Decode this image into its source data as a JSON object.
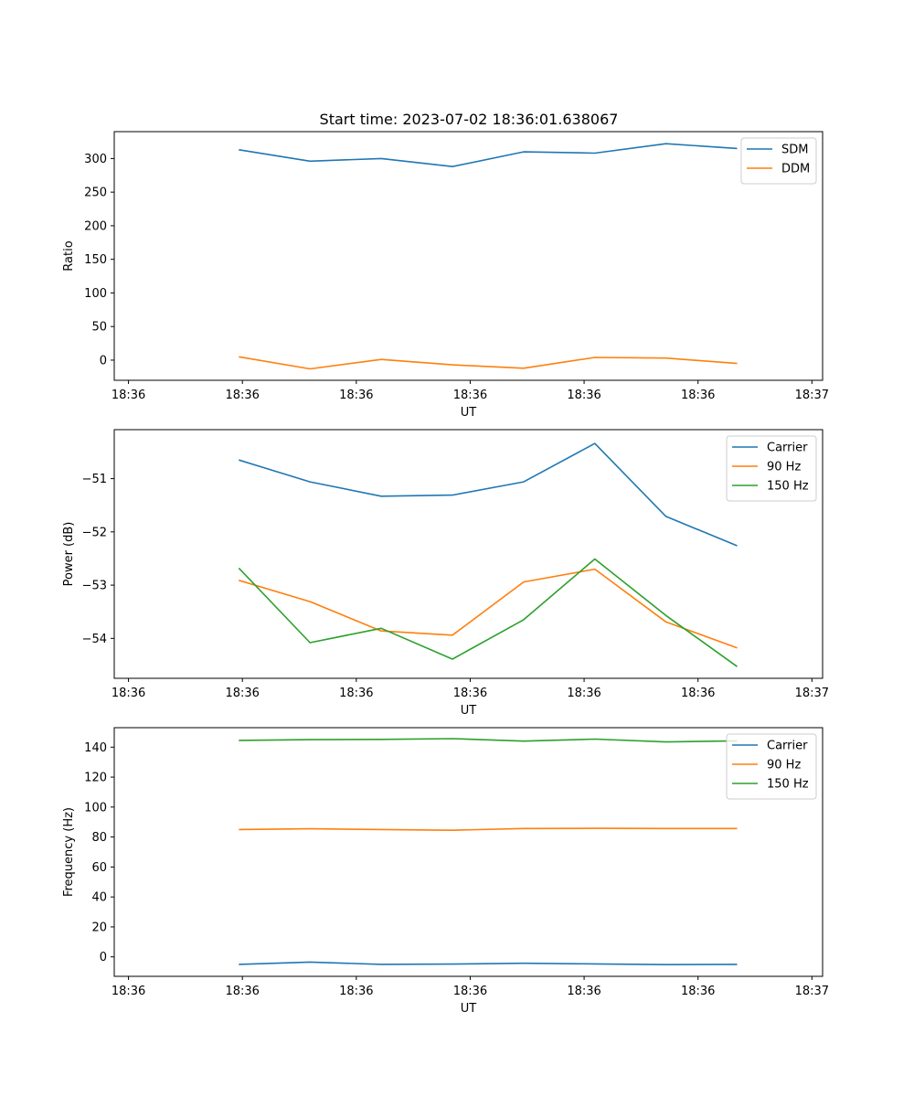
{
  "figure": {
    "title": "Start time: 2023-07-02 18:36:01.638067"
  },
  "colors": {
    "blue": "#1f77b4",
    "orange": "#ff7f0e",
    "green": "#2ca02c"
  },
  "chart_data": [
    {
      "type": "line",
      "title": "Start time: 2023-07-02 18:36:01.638067",
      "xlabel": "UT",
      "ylabel": "Ratio",
      "legend_position": "top-right",
      "grid": false,
      "x": [
        1,
        2,
        3,
        4,
        5,
        6,
        7,
        8
      ],
      "xlim": [
        -0.75,
        9.2
      ],
      "x_ticks": [
        -0.55,
        1.05,
        2.65,
        4.25,
        5.85,
        7.45,
        9.05
      ],
      "x_tick_labels": [
        "18:36",
        "18:36",
        "18:36",
        "18:36",
        "18:36",
        "18:36",
        "18:37"
      ],
      "ylim": [
        -30,
        340
      ],
      "y_ticks": [
        0,
        50,
        100,
        150,
        200,
        250,
        300
      ],
      "y_tick_labels": [
        "0",
        "50",
        "100",
        "150",
        "200",
        "250",
        "300"
      ],
      "series": [
        {
          "name": "SDM",
          "color": "#1f77b4",
          "values": [
            313,
            296,
            300,
            288,
            310,
            308,
            322,
            315
          ]
        },
        {
          "name": "DDM",
          "color": "#ff7f0e",
          "values": [
            5,
            -13,
            1,
            -7,
            -12,
            4,
            3,
            -5
          ]
        }
      ]
    },
    {
      "type": "line",
      "title": "",
      "xlabel": "UT",
      "ylabel": "Power (dB)",
      "legend_position": "top-right",
      "grid": false,
      "x": [
        1,
        2,
        3,
        4,
        5,
        6,
        7,
        8
      ],
      "xlim": [
        -0.75,
        9.2
      ],
      "x_ticks": [
        -0.55,
        1.05,
        2.65,
        4.25,
        5.85,
        7.45,
        9.05
      ],
      "x_tick_labels": [
        "18:36",
        "18:36",
        "18:36",
        "18:36",
        "18:36",
        "18:36",
        "18:37"
      ],
      "ylim": [
        -54.75,
        -50.08
      ],
      "y_ticks": [
        -54,
        -53,
        -52,
        -51
      ],
      "y_tick_labels": [
        "−54",
        "−53",
        "−52",
        "−51"
      ],
      "series": [
        {
          "name": "Carrier",
          "color": "#1f77b4",
          "values": [
            -50.65,
            -51.06,
            -51.33,
            -51.31,
            -51.06,
            -50.34,
            -51.71,
            -52.26
          ]
        },
        {
          "name": "90 Hz",
          "color": "#ff7f0e",
          "values": [
            -52.91,
            -53.31,
            -53.86,
            -53.94,
            -52.94,
            -52.7,
            -53.69,
            -54.18
          ]
        },
        {
          "name": "150 Hz",
          "color": "#2ca02c",
          "values": [
            -52.68,
            -54.08,
            -53.81,
            -54.39,
            -53.65,
            -52.51,
            -53.57,
            -54.53
          ]
        }
      ]
    },
    {
      "type": "line",
      "title": "",
      "xlabel": "UT",
      "ylabel": "Frequency (Hz)",
      "legend_position": "top-right",
      "grid": false,
      "x": [
        1,
        2,
        3,
        4,
        5,
        6,
        7,
        8
      ],
      "xlim": [
        -0.75,
        9.2
      ],
      "x_ticks": [
        -0.55,
        1.05,
        2.65,
        4.25,
        5.85,
        7.45,
        9.05
      ],
      "x_tick_labels": [
        "18:36",
        "18:36",
        "18:36",
        "18:36",
        "18:36",
        "18:36",
        "18:37"
      ],
      "ylim": [
        -13,
        153
      ],
      "y_ticks": [
        0,
        20,
        40,
        60,
        80,
        100,
        120,
        140
      ],
      "y_tick_labels": [
        "0",
        "20",
        "40",
        "60",
        "80",
        "100",
        "120",
        "140"
      ],
      "series": [
        {
          "name": "Carrier",
          "color": "#1f77b4",
          "values": [
            -5.0,
            -3.5,
            -5.0,
            -4.8,
            -4.3,
            -4.7,
            -5.2,
            -5.0
          ]
        },
        {
          "name": "90 Hz",
          "color": "#ff7f0e",
          "values": [
            85.0,
            85.5,
            85.0,
            84.5,
            85.7,
            85.8,
            85.7,
            85.7
          ]
        },
        {
          "name": "150 Hz",
          "color": "#2ca02c",
          "values": [
            144.5,
            145.0,
            145.2,
            145.7,
            144.0,
            145.4,
            143.5,
            144.2
          ]
        }
      ]
    }
  ]
}
